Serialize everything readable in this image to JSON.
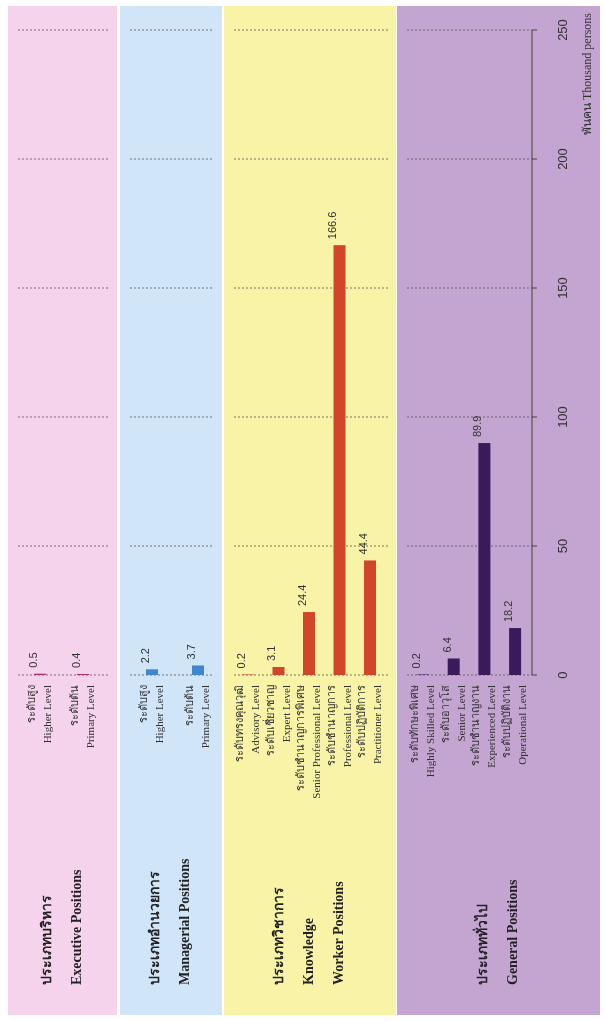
{
  "chart_data": [
    {
      "type": "bar",
      "title": "ประเภทบริหาร\nExecutive Positions",
      "categories": [
        "ระดับสูง\nHigher Level",
        "ระดับต้น\nPrimary Level"
      ],
      "values": [
        0.5,
        0.4
      ],
      "color": "#b0306a",
      "data_labels": true,
      "ylim": [
        0,
        250
      ],
      "yticks": [
        0,
        50,
        100,
        150,
        200,
        250
      ],
      "grid": "y",
      "tick_labels": "x"
    },
    {
      "type": "bar",
      "title": "ประเภทอำนวยการ\nManagerial Positions",
      "categories": [
        "ระดับสูง\nHigher Level",
        "ระดับต้น\nPrimary Level"
      ],
      "values": [
        2.2,
        3.7
      ],
      "color": "#3f86cc",
      "data_labels": true,
      "ylim": [
        0,
        250
      ],
      "yticks": [
        0,
        50,
        100,
        150,
        200,
        250
      ],
      "grid": "y",
      "tick_labels": "x"
    },
    {
      "type": "bar",
      "title": "ประเภทวิชาการ\nKnowledge\nWorker Positions",
      "categories": [
        "ระดับทรงคุณวุฒิ\nAdvisory Level",
        "ระดับเชี่ยวชาญ\nExpert Level",
        "ระดับชำนาญการพิเศษ\nSenior Professional Level",
        "ระดับชำนาญการ\nProfessional Level",
        "ระดับปฏิบัติการ\nPractitioner Level"
      ],
      "values": [
        0.2,
        3.1,
        24.4,
        166.6,
        44.4
      ],
      "color": "#d2452a",
      "data_labels": true,
      "ylim": [
        0,
        250
      ],
      "yticks": [
        0,
        50,
        100,
        150,
        200,
        250
      ],
      "grid": "y",
      "tick_labels": "x"
    },
    {
      "type": "bar",
      "title": "ประเภททั่วไป\nGeneral Positions",
      "categories": [
        "ระดับทักษะพิเศษ\nHighly Skilled Level",
        "ระดับอาวุโส\nSenior Level",
        "ระดับชำนาญงาน\nExperienced Level",
        "ระดับปฏิบัติงาน\nOperational Level"
      ],
      "values": [
        0.2,
        6.4,
        89.9,
        18.2
      ],
      "color": "#3b1a5c",
      "data_labels": true,
      "ylim": [
        0,
        250
      ],
      "yticks": [
        0,
        50,
        100,
        150,
        200,
        250
      ],
      "grid": "y",
      "ylabel": "พันคน Thousand persons"
    }
  ]
}
